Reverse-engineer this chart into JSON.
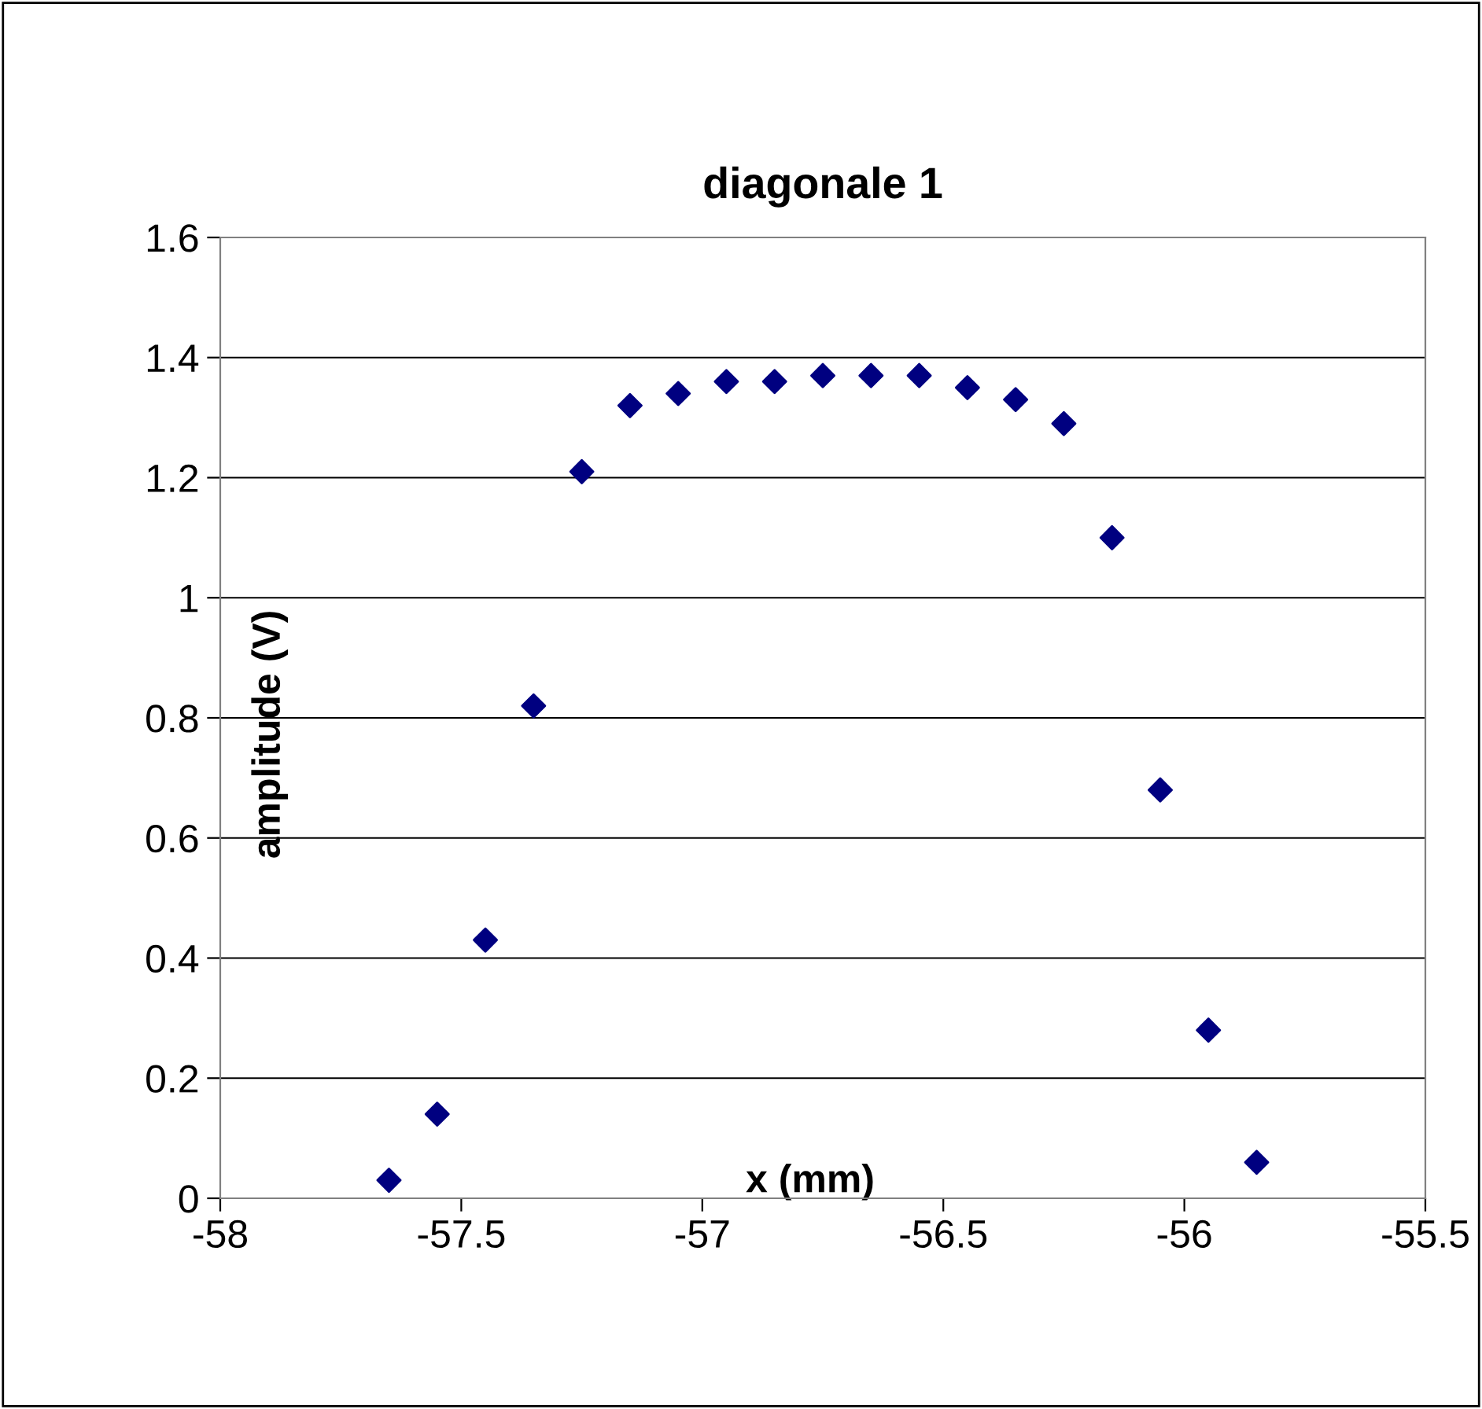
{
  "chart_data": {
    "type": "scatter",
    "title": "diagonale 1",
    "xlabel": "x (mm)",
    "ylabel": "amplitude (V)",
    "x": [
      -57.65,
      -57.55,
      -57.45,
      -57.35,
      -57.25,
      -57.15,
      -57.05,
      -56.95,
      -56.85,
      -56.75,
      -56.65,
      -56.55,
      -56.45,
      -56.35,
      -56.25,
      -56.15,
      -56.05,
      -55.95,
      -55.85
    ],
    "series": [
      {
        "color": "#000080",
        "values": [
          0.03,
          0.14,
          0.43,
          0.82,
          1.21,
          1.32,
          1.34,
          1.36,
          1.36,
          1.37,
          1.37,
          1.37,
          1.35,
          1.33,
          1.29,
          1.1,
          0.68,
          0.28,
          0.06
        ]
      }
    ],
    "xlim": [
      -58,
      -55.5
    ],
    "xticks": [
      -58,
      -57.5,
      -57,
      -56.5,
      -56,
      -55.5
    ],
    "ylim": [
      0,
      1.6
    ],
    "yticks": [
      0,
      0.2,
      0.4,
      0.6,
      0.8,
      1,
      1.2,
      1.4,
      1.6
    ],
    "grid": "y",
    "marker": "diamond"
  }
}
